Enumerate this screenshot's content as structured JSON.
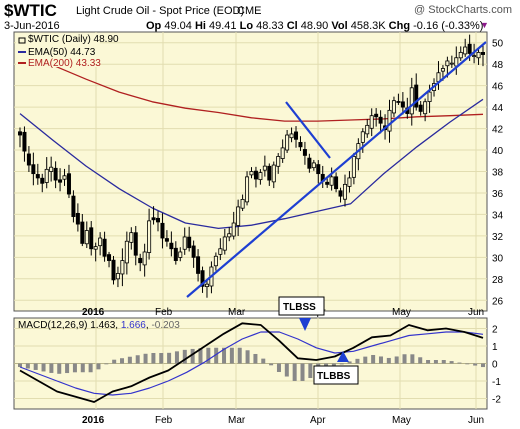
{
  "header": {
    "symbol": "$WTIC",
    "name": "Light Crude Oil - Spot Price (EOD)",
    "exchange": "CME",
    "credit": "@ StockCharts.com",
    "date": "3-Jun-2016",
    "open_label": "Op",
    "open": "49.04",
    "high_label": "Hi",
    "high": "49.41",
    "low_label": "Lo",
    "low": "48.33",
    "close_label": "Cl",
    "close": "48.90",
    "volume_label": "Vol",
    "volume": "458.3K",
    "change_label": "Chg",
    "change": "-0.16 (-0.33%)",
    "down_icon": "triangle-down-icon"
  },
  "colors": {
    "panel_bg": "#fbf8d6",
    "candle": "#000000",
    "ema50": "#2a2a9e",
    "ema200": "#b02020",
    "trendline": "#1e3fd2",
    "macd": "#000000",
    "signal": "#3333cc",
    "histogram": "#888888"
  },
  "chart_data": [
    {
      "type": "candlestick",
      "legend": [
        {
          "label": "$WTIC (Daily) 48.90",
          "color": "#000000"
        },
        {
          "label": "EMA(50) 44.73",
          "color": "#2a2a9e"
        },
        {
          "label": "EMA(200) 43.33",
          "color": "#b02020"
        }
      ],
      "x_ticks": [
        "2016",
        "Feb",
        "Mar",
        "Apr",
        "May",
        "Jun"
      ],
      "y_ticks": [
        26,
        28,
        30,
        32,
        34,
        36,
        38,
        40,
        42,
        44,
        46,
        48,
        50
      ],
      "ylim": [
        25,
        51
      ],
      "grid": true,
      "close": [
        41.4,
        39.9,
        38.6,
        37.8,
        37.4,
        36.9,
        38.2,
        38.4,
        37.2,
        37.0,
        37.6,
        35.9,
        33.8,
        33.1,
        31.3,
        32.5,
        30.8,
        31.0,
        31.8,
        30.1,
        29.7,
        27.9,
        28.5,
        29.7,
        31.5,
        32.3,
        30.2,
        29.5,
        30.5,
        33.4,
        33.5,
        33.3,
        31.8,
        31.5,
        30.8,
        29.7,
        30.5,
        31.9,
        30.9,
        30.0,
        28.5,
        27.3,
        27.5,
        29.1,
        30.1,
        30.8,
        31.9,
        32.2,
        33.2,
        34.7,
        35.4,
        37.5,
        38.0,
        37.3,
        37.9,
        38.5,
        37.2,
        38.6,
        39.4,
        40.2,
        41.4,
        41.5,
        41.0,
        40.3,
        39.5,
        38.3,
        38.8,
        37.8,
        37.1,
        36.8,
        37.5,
        36.4,
        35.7,
        36.8,
        37.4,
        39.4,
        40.6,
        41.7,
        42.3,
        43.2,
        43.1,
        42.5,
        41.9,
        43.7,
        44.6,
        44.5,
        44.0,
        43.4,
        45.8,
        44.0,
        43.6,
        44.5,
        45.4,
        46.2,
        47.2,
        47.6,
        48.3,
        48.1,
        48.6,
        49.1,
        49.6,
        49.0,
        48.8,
        49.1,
        48.9
      ],
      "series": [
        {
          "name": "EMA(50)",
          "values": [
            43.4,
            40.9,
            38.5,
            36.4,
            34.6,
            33.2,
            32.7,
            33.0,
            33.6,
            34.3,
            35.0,
            37.8,
            40.3,
            42.6,
            44.73
          ]
        },
        {
          "name": "EMA(200)",
          "values": [
            49.8,
            47.9,
            46.6,
            45.4,
            44.5,
            43.9,
            43.5,
            43.0,
            42.7,
            42.7,
            42.8,
            42.9,
            43.1,
            43.2,
            43.33
          ]
        }
      ]
    },
    {
      "type": "line",
      "legend": {
        "label": "MACD(12,26,9)",
        "macd": "1.463",
        "signal": "1.666",
        "histogram": "-0.203"
      },
      "x_ticks": [
        "2016",
        "Feb",
        "Mar",
        "Apr",
        "May",
        "Jun"
      ],
      "y_ticks": [
        2,
        1,
        0,
        -1,
        -2
      ],
      "ylim": [
        -2.6,
        2.6
      ],
      "grid": true,
      "series": [
        {
          "name": "MACD",
          "values": [
            -0.4,
            -1.0,
            -1.6,
            -1.9,
            -2.2,
            -1.6,
            -1.3,
            -0.8,
            -0.4,
            0.3,
            1.0,
            1.7,
            2.3,
            2.2,
            1.3,
            0.3,
            0.2,
            0.4,
            0.9,
            1.5,
            1.6,
            2.2,
            1.9,
            2.0,
            1.8,
            1.463
          ]
        },
        {
          "name": "Signal",
          "values": [
            -0.2,
            -0.6,
            -1.0,
            -1.4,
            -1.7,
            -1.8,
            -1.7,
            -1.4,
            -1.0,
            -0.5,
            0.1,
            0.8,
            1.4,
            1.8,
            1.8,
            1.4,
            0.9,
            0.6,
            0.7,
            1.0,
            1.3,
            1.6,
            1.7,
            1.8,
            1.8,
            1.666
          ]
        }
      ],
      "annotations": [
        {
          "label": "TLBSS"
        },
        {
          "label": "TLBBS"
        }
      ]
    }
  ]
}
